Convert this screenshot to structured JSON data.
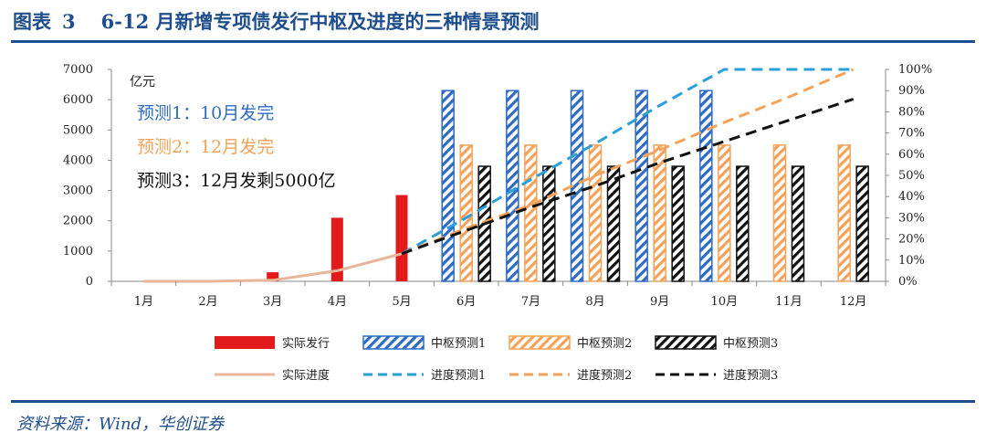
{
  "figure": {
    "label": "图表",
    "number": "3",
    "title": "6-12 月新增专项债发行中枢及进度的三种情景预测",
    "source": "资料来源：Wind，华创证券"
  },
  "chart_data": {
    "type": "bar",
    "categories": [
      "1月",
      "2月",
      "3月",
      "4月",
      "5月",
      "6月",
      "7月",
      "8月",
      "9月",
      "10月",
      "11月",
      "12月"
    ],
    "y_unit": "亿元",
    "ylim": [
      0,
      7000
    ],
    "yticks": [
      0,
      1000,
      2000,
      3000,
      4000,
      5000,
      6000,
      7000
    ],
    "y2lim": [
      0,
      100
    ],
    "y2ticks": [
      "0%",
      "10%",
      "20%",
      "30%",
      "40%",
      "50%",
      "60%",
      "70%",
      "80%",
      "90%",
      "100%"
    ],
    "bar_series": [
      {
        "name": "实际发行",
        "color": "#e31a1c",
        "pattern": "solid",
        "values": [
          0,
          0,
          300,
          2100,
          2850,
          null,
          null,
          null,
          null,
          null,
          null,
          null
        ]
      },
      {
        "name": "中枢预测1",
        "color": "#2e6bc4",
        "pattern": "hatch",
        "values": [
          null,
          null,
          null,
          null,
          null,
          6300,
          6300,
          6300,
          6300,
          6300,
          null,
          null
        ]
      },
      {
        "name": "中枢预测2",
        "color": "#f4a259",
        "pattern": "hatch",
        "values": [
          null,
          null,
          null,
          null,
          null,
          4500,
          4500,
          4500,
          4500,
          4500,
          4500,
          4500
        ]
      },
      {
        "name": "中枢预测3",
        "color": "#111111",
        "pattern": "hatch",
        "values": [
          null,
          null,
          null,
          null,
          null,
          3800,
          3800,
          3800,
          3800,
          3800,
          3800,
          3800
        ]
      }
    ],
    "line_series": [
      {
        "name": "实际进度",
        "color": "#e8b49a",
        "dash": "solid",
        "values": [
          0,
          0,
          0.5,
          5,
          13,
          null,
          null,
          null,
          null,
          null,
          null,
          null
        ]
      },
      {
        "name": "进度预测1",
        "color": "#2a9fd8",
        "dash": "dashed",
        "values": [
          null,
          null,
          null,
          null,
          13,
          30,
          48,
          65,
          83,
          100,
          100,
          100
        ]
      },
      {
        "name": "进度预测2",
        "color": "#f4a259",
        "dash": "dashed",
        "values": [
          null,
          null,
          null,
          null,
          13,
          25,
          36,
          50,
          62,
          75,
          87,
          100
        ]
      },
      {
        "name": "进度预测3",
        "color": "#111111",
        "dash": "dashed",
        "values": [
          null,
          null,
          null,
          null,
          13,
          24,
          35,
          45,
          56,
          66,
          76,
          86
        ]
      }
    ],
    "annotations": [
      {
        "text": "预测1：10月发完",
        "color": "#2e6bc4"
      },
      {
        "text": "预测2：12月发完",
        "color": "#f4a259"
      },
      {
        "text": "预测3：12月发剩5000亿",
        "color": "#111111"
      }
    ],
    "legend": [
      [
        "实际发行",
        "中枢预测1",
        "中枢预测2",
        "中枢预测3"
      ],
      [
        "实际进度",
        "进度预测1",
        "进度预测2",
        "进度预测3"
      ]
    ],
    "legend_position": "bottom"
  }
}
